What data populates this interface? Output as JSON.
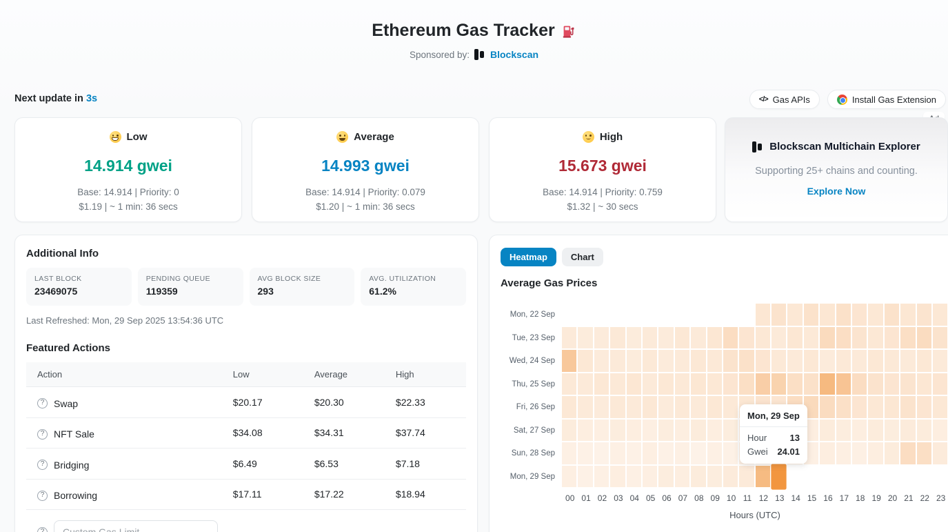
{
  "header": {
    "title": "Ethereum Gas Tracker",
    "sponsored_label": "Sponsored by:",
    "sponsor_name": "Blockscan"
  },
  "topbar": {
    "next_update_label": "Next update in ",
    "next_update_value": "3s",
    "gas_apis_label": "Gas APIs",
    "gas_apis_icon": "</>",
    "install_extension_label": "Install Gas Extension",
    "ad_label": "Ad"
  },
  "colors": {
    "accent_blue": "#0784c3",
    "low_green": "#00a186",
    "high_red": "#b02a37",
    "heatmap_min": "#fdf2e8",
    "heatmap_max": "#f2963f"
  },
  "gas_cards": [
    {
      "level": "Low",
      "emoji": "grinning-face",
      "value": "14.914 gwei",
      "color": "#00a186",
      "base_priority": "Base: 14.914 | Priority: 0",
      "cost_time": "$1.19 | ~ 1 min: 36 secs"
    },
    {
      "level": "Average",
      "emoji": "open-smile-face",
      "value": "14.993 gwei",
      "color": "#0784c3",
      "base_priority": "Base: 14.914 | Priority: 0.079",
      "cost_time": "$1.20 | ~ 1 min: 36 secs"
    },
    {
      "level": "High",
      "emoji": "slightly-smiling-face",
      "value": "15.673 gwei",
      "color": "#b02a37",
      "base_priority": "Base: 14.914 | Priority: 0.759",
      "cost_time": "$1.32 | ~ 30 secs"
    }
  ],
  "ad_card": {
    "title": "Blockscan Multichain Explorer",
    "subtitle": "Supporting 25+ chains and counting.",
    "cta": "Explore Now"
  },
  "additional_info": {
    "title": "Additional Info",
    "stats": [
      {
        "label": "LAST BLOCK",
        "value": "23469075"
      },
      {
        "label": "PENDING QUEUE",
        "value": "119359"
      },
      {
        "label": "AVG BLOCK SIZE",
        "value": "293"
      },
      {
        "label": "AVG. UTILIZATION",
        "value": "61.2%"
      }
    ],
    "last_refreshed": "Last Refreshed: Mon, 29 Sep 2025 13:54:36 UTC"
  },
  "featured_actions": {
    "title": "Featured Actions",
    "columns": [
      "Action",
      "Low",
      "Average",
      "High"
    ],
    "rows": [
      {
        "action": "Swap",
        "low": "$20.17",
        "average": "$20.30",
        "high": "$22.33"
      },
      {
        "action": "NFT Sale",
        "low": "$34.08",
        "average": "$34.31",
        "high": "$37.74"
      },
      {
        "action": "Bridging",
        "low": "$6.49",
        "average": "$6.53",
        "high": "$7.18"
      },
      {
        "action": "Borrowing",
        "low": "$17.11",
        "average": "$17.22",
        "high": "$18.94"
      }
    ],
    "custom_gas_placeholder": "Custom Gas Limit"
  },
  "heatmap_panel": {
    "tabs": [
      {
        "label": "Heatmap",
        "active": true
      },
      {
        "label": "Chart",
        "active": false
      }
    ],
    "title": "Average Gas Prices"
  },
  "chart_data": {
    "type": "heatmap",
    "title": "Average Gas Prices",
    "xlabel": "Hours (UTC)",
    "x_ticks": [
      "00",
      "01",
      "02",
      "03",
      "04",
      "05",
      "06",
      "07",
      "08",
      "09",
      "10",
      "11",
      "12",
      "13",
      "14",
      "15",
      "16",
      "17",
      "18",
      "19",
      "20",
      "21",
      "22",
      "23"
    ],
    "rows": [
      "Mon, 22 Sep",
      "Tue, 23 Sep",
      "Wed, 24 Sep",
      "Thu, 25 Sep",
      "Fri, 26 Sep",
      "Sat, 27 Sep",
      "Sun, 28 Sep",
      "Mon, 29 Sep"
    ],
    "unit": "Gwei",
    "value_range": [
      15.2,
      24.01
    ],
    "legend_position": "none",
    "values": [
      [
        null,
        null,
        null,
        null,
        null,
        null,
        null,
        null,
        null,
        null,
        null,
        null,
        16.3,
        16.6,
        16.2,
        16.7,
        16.3,
        16.8,
        16.4,
        16.2,
        16.7,
        16.3,
        16.5,
        16.2
      ],
      [
        16.0,
        15.8,
        15.9,
        16.1,
        15.8,
        16.0,
        15.9,
        16.2,
        16.0,
        16.3,
        17.2,
        16.4,
        16.2,
        16.0,
        16.3,
        16.1,
        17.4,
        17.1,
        16.5,
        16.2,
        16.4,
        17.0,
        17.3,
        16.6
      ],
      [
        19.2,
        16.2,
        15.9,
        16.0,
        15.8,
        16.1,
        15.9,
        16.0,
        16.2,
        16.1,
        16.6,
        16.8,
        16.4,
        16.1,
        16.0,
        16.2,
        15.9,
        16.1,
        16.0,
        16.2,
        16.1,
        16.0,
        16.2,
        16.0
      ],
      [
        16.1,
        16.0,
        16.2,
        16.1,
        16.3,
        16.0,
        16.2,
        16.1,
        16.3,
        16.2,
        16.4,
        17.0,
        18.6,
        18.2,
        17.0,
        16.8,
        20.6,
        19.6,
        17.2,
        16.6,
        16.4,
        16.5,
        16.3,
        16.4
      ],
      [
        16.2,
        16.0,
        15.9,
        16.1,
        16.0,
        16.2,
        15.9,
        16.1,
        16.0,
        16.2,
        16.1,
        16.3,
        16.5,
        16.4,
        17.2,
        17.5,
        17.3,
        16.9,
        16.4,
        16.2,
        16.3,
        16.6,
        16.4,
        16.2
      ],
      [
        15.8,
        15.6,
        15.5,
        15.7,
        15.6,
        15.5,
        15.7,
        15.6,
        15.8,
        15.6,
        15.7,
        15.5,
        15.6,
        15.8,
        15.7,
        15.6,
        15.8,
        15.7,
        15.6,
        15.8,
        15.7,
        15.9,
        15.8,
        15.6
      ],
      [
        15.4,
        15.3,
        15.2,
        15.4,
        15.3,
        15.5,
        15.3,
        15.4,
        15.2,
        15.4,
        15.3,
        15.5,
        15.4,
        15.3,
        15.5,
        15.4,
        15.6,
        15.5,
        15.4,
        15.6,
        15.8,
        17.2,
        17.0,
        15.9
      ],
      [
        15.5,
        15.3,
        15.4,
        15.6,
        15.4,
        15.5,
        15.7,
        15.6,
        15.8,
        15.7,
        15.9,
        16.0,
        20.5,
        24.01,
        null,
        null,
        null,
        null,
        null,
        null,
        null,
        null,
        null,
        null
      ]
    ],
    "highlight": {
      "row": 7,
      "col": 13
    },
    "tooltip": {
      "date": "Mon, 29 Sep",
      "hour_label": "Hour",
      "hour": "13",
      "gwei_label": "Gwei",
      "gwei": "24.01"
    }
  }
}
